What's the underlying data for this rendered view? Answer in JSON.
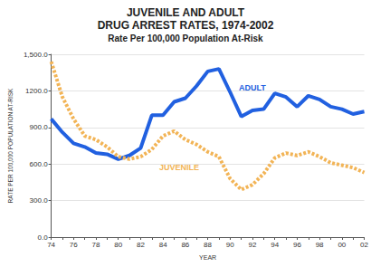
{
  "chart_data": {
    "type": "line",
    "title": "JUVENILE AND ADULT\nDRUG ARREST RATES, 1974-2002",
    "subtitle": "Rate Per 100,000 Population At-Risk",
    "x_label": "YEAR",
    "y_label": "RATE PER 100,000 POPULATION AT-RISK",
    "categories": [
      "74",
      null,
      "76",
      null,
      "78",
      null,
      "80",
      null,
      "82",
      null,
      "84",
      null,
      "86",
      null,
      "88",
      null,
      "90",
      null,
      "92",
      null,
      "94",
      null,
      "96",
      null,
      "98",
      null,
      "00",
      null,
      "02"
    ],
    "series": [
      {
        "name": "ADULT",
        "color": "#2160e0",
        "line_style": "solid",
        "values": [
          970,
          860,
          770,
          740,
          690,
          680,
          640,
          670,
          730,
          1000,
          1000,
          1110,
          1140,
          1240,
          1360,
          1380,
          1190,
          990,
          1040,
          1050,
          1180,
          1150,
          1070,
          1160,
          1130,
          1070,
          1050,
          1010,
          1030
        ]
      },
      {
        "name": "JUVENILE",
        "color": "#f2b456",
        "line_style": "dashed",
        "values": [
          1440,
          1150,
          970,
          830,
          800,
          740,
          660,
          640,
          660,
          720,
          830,
          870,
          800,
          760,
          700,
          660,
          480,
          390,
          430,
          520,
          650,
          690,
          670,
          700,
          660,
          610,
          590,
          570,
          530
        ]
      }
    ],
    "ylim": [
      0,
      1500
    ],
    "yticks": [
      {
        "value": 0,
        "label": "0.0"
      },
      {
        "value": 300,
        "label": "300.0"
      },
      {
        "value": 600,
        "label": "600.0"
      },
      {
        "value": 900,
        "label": "900.0"
      },
      {
        "value": 1200,
        "label": "1200.0"
      },
      {
        "value": 1500,
        "label": "1,500.0"
      }
    ],
    "grid": true
  }
}
